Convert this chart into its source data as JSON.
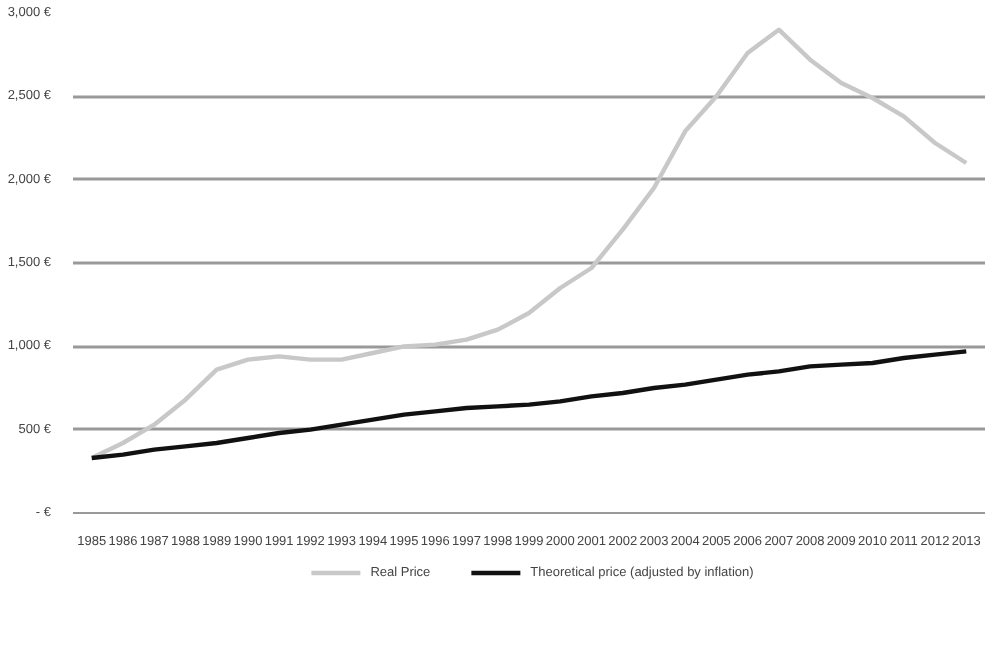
{
  "chart_data": {
    "type": "line",
    "categories": [
      "1985",
      "1986",
      "1987",
      "1988",
      "1989",
      "1990",
      "1991",
      "1992",
      "1993",
      "1994",
      "1995",
      "1996",
      "1997",
      "1998",
      "1999",
      "2000",
      "2001",
      "2002",
      "2003",
      "2004",
      "2005",
      "2006",
      "2007",
      "2008",
      "2009",
      "2010",
      "2011",
      "2012",
      "2013"
    ],
    "series": [
      {
        "name": "Real Price",
        "color": "#c8c8c8",
        "values": [
          330,
          420,
          530,
          680,
          860,
          920,
          940,
          920,
          920,
          960,
          1000,
          1010,
          1040,
          1100,
          1200,
          1350,
          1470,
          1700,
          1950,
          2290,
          2500,
          2760,
          2900,
          2720,
          2580,
          2490,
          2380,
          2220,
          2100
        ]
      },
      {
        "name": "Theoretical price (adjusted by inflation)",
        "color": "#111111",
        "values": [
          330,
          350,
          380,
          400,
          420,
          450,
          480,
          500,
          530,
          560,
          590,
          610,
          630,
          640,
          650,
          670,
          700,
          720,
          750,
          770,
          800,
          830,
          850,
          880,
          890,
          900,
          930,
          950,
          970
        ]
      }
    ],
    "ylim": [
      0,
      3000
    ],
    "yticks": [
      {
        "value": 0,
        "label": "- €"
      },
      {
        "value": 500,
        "label": "500 €"
      },
      {
        "value": 1000,
        "label": "1,000 €"
      },
      {
        "value": 1500,
        "label": "1,500 €"
      },
      {
        "value": 2000,
        "label": "2,000 €"
      },
      {
        "value": 2500,
        "label": "2,500 €"
      },
      {
        "value": 3000,
        "label": "3,000 €"
      }
    ],
    "grid": "y",
    "legend": "bottom",
    "marker": "none",
    "line_style": "solid"
  }
}
